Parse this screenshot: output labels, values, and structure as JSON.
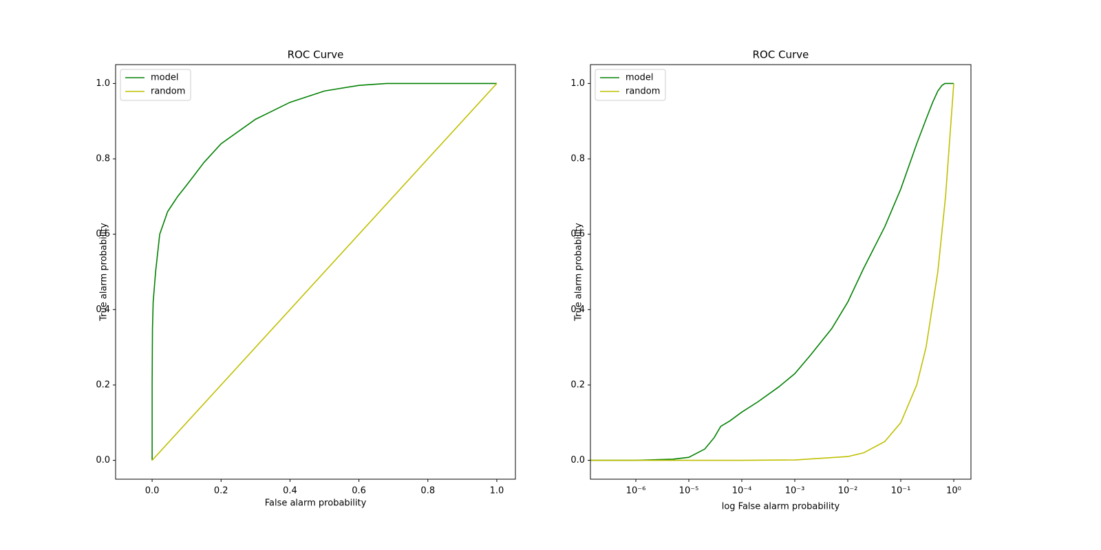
{
  "chart_data": [
    {
      "type": "line",
      "title": "ROC Curve",
      "x_label": "False alarm probability",
      "y_label": "True alarm probability",
      "xlim": [
        -0.106,
        1.054
      ],
      "ylim": [
        -0.05,
        1.05
      ],
      "xticks": [
        {
          "value": 0,
          "label": "0.0"
        },
        0.2,
        0.4,
        0.6,
        0.8,
        {
          "value": 1,
          "label": "1.0"
        }
      ],
      "yticks": [
        {
          "value": 0,
          "label": "0.0"
        },
        0.2,
        0.4,
        0.6,
        0.8,
        {
          "value": 1,
          "label": "1.0"
        }
      ],
      "legend": "upper left",
      "series": [
        {
          "name": "model",
          "color": "#008000",
          "x": [
            0,
            0,
            0.001,
            0.003,
            0.01,
            0.022,
            0.045,
            0.074,
            0.1,
            0.15,
            0.2,
            0.3,
            0.4,
            0.5,
            0.6,
            0.68,
            1
          ],
          "values": [
            0,
            0.2,
            0.35,
            0.42,
            0.5,
            0.6,
            0.66,
            0.7,
            0.73,
            0.79,
            0.84,
            0.905,
            0.95,
            0.98,
            0.995,
            1,
            1
          ]
        },
        {
          "name": "random",
          "color": "#bfbf00",
          "x": [
            0,
            1
          ],
          "values": [
            0,
            1
          ]
        }
      ]
    },
    {
      "type": "line",
      "title": "ROC Curve",
      "x_label": "log False alarm probability",
      "y_label": "True alarm probability",
      "log_x": true,
      "xlim": [
        1.39e-07,
        2.11
      ],
      "ylim": [
        -0.05,
        1.05
      ],
      "xticks": [
        {
          "value": 1e-06,
          "label": "10⁻⁶"
        },
        {
          "value": 1e-05,
          "label": "10⁻⁵"
        },
        {
          "value": 0.0001,
          "label": "10⁻⁴"
        },
        {
          "value": 0.001,
          "label": "10⁻³"
        },
        {
          "value": 0.01,
          "label": "10⁻²"
        },
        {
          "value": 0.1,
          "label": "10⁻¹"
        },
        {
          "value": 1,
          "label": "10⁰"
        }
      ],
      "yticks": [
        {
          "value": 0,
          "label": "0.0"
        },
        0.2,
        0.4,
        0.6,
        0.8,
        {
          "value": 1,
          "label": "1.0"
        }
      ],
      "legend": "upper left",
      "series": [
        {
          "name": "model",
          "color": "#008000",
          "x": [
            1.4e-07,
            1e-06,
            5e-06,
            1e-05,
            2e-05,
            3e-05,
            4e-05,
            6e-05,
            0.0001,
            0.0002,
            0.0005,
            0.001,
            0.002,
            0.005,
            0.01,
            0.02,
            0.05,
            0.1,
            0.2,
            0.3,
            0.4,
            0.5,
            0.6,
            0.68,
            1
          ],
          "values": [
            0,
            0,
            0.003,
            0.008,
            0.03,
            0.06,
            0.09,
            0.105,
            0.128,
            0.155,
            0.195,
            0.23,
            0.28,
            0.35,
            0.42,
            0.51,
            0.62,
            0.72,
            0.84,
            0.905,
            0.95,
            0.98,
            0.995,
            1,
            1
          ]
        },
        {
          "name": "random",
          "color": "#bfbf00",
          "x": [
            1.4e-07,
            1e-06,
            1e-05,
            0.0001,
            0.001,
            0.01,
            0.02,
            0.05,
            0.1,
            0.2,
            0.3,
            0.5,
            0.7,
            1
          ],
          "values": [
            1.4e-07,
            1e-06,
            1e-05,
            0.0001,
            0.001,
            0.01,
            0.02,
            0.05,
            0.1,
            0.2,
            0.3,
            0.5,
            0.7,
            1
          ]
        }
      ]
    }
  ]
}
